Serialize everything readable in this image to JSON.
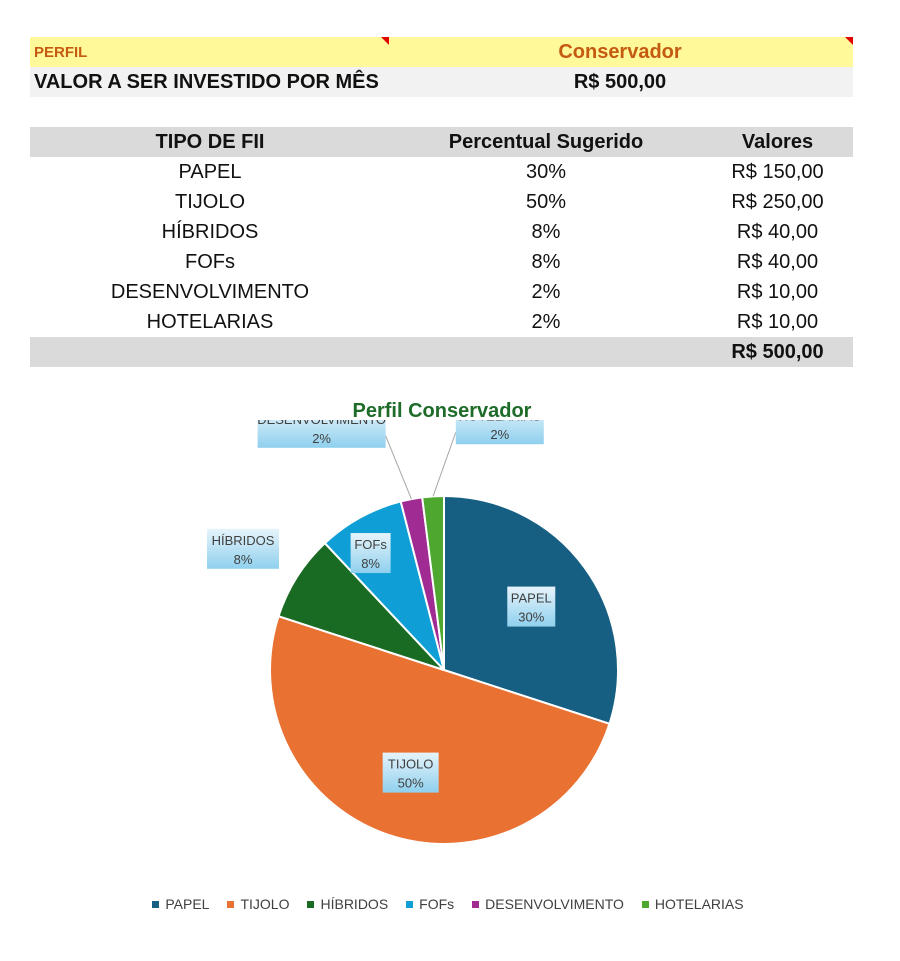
{
  "perfil": {
    "label": "PERFIL",
    "value": "Conservador"
  },
  "valor": {
    "label": "VALOR A SER INVESTIDO POR MÊS",
    "value": "R$ 500,00"
  },
  "table": {
    "headers": [
      "TIPO DE FII",
      "Percentual Sugerido",
      "Valores"
    ],
    "rows": [
      [
        "PAPEL",
        "30%",
        "R$ 150,00"
      ],
      [
        "TIJOLO",
        "50%",
        "R$ 250,00"
      ],
      [
        "HÍBRIDOS",
        "8%",
        "R$ 40,00"
      ],
      [
        "FOFs",
        "8%",
        "R$ 40,00"
      ],
      [
        "DESENVOLVIMENTO",
        "2%",
        "R$ 10,00"
      ],
      [
        "HOTELARIAS",
        "2%",
        "R$ 10,00"
      ]
    ],
    "total": "R$ 500,00"
  },
  "chart_data": {
    "type": "pie",
    "title": "Perfil Conservador",
    "categories": [
      "PAPEL",
      "TIJOLO",
      "HÍBRIDOS",
      "FOFs",
      "DESENVOLVIMENTO",
      "HOTELARIAS"
    ],
    "values": [
      30,
      50,
      8,
      8,
      2,
      2
    ],
    "labels": [
      "30%",
      "50%",
      "8%",
      "8%",
      "2%",
      "2%"
    ],
    "colors": [
      "#175f82",
      "#e97132",
      "#196b24",
      "#0f9ed5",
      "#a02b93",
      "#4ea72e"
    ],
    "legend": "bottom"
  }
}
